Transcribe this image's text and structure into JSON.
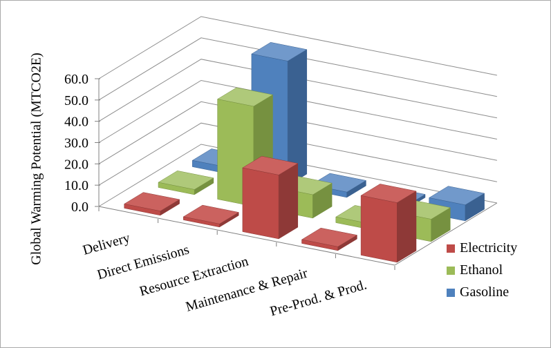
{
  "figure": {
    "background": "#FFFFFF",
    "border_color": "#A9A9A9"
  },
  "chart_data": {
    "type": "bar",
    "subtype": "3d-column",
    "title": "",
    "xlabel": "",
    "ylabel": "Global Warming Potential (MTCO2E)",
    "categories": [
      "Delivery",
      "Direct Emissions",
      "Resource Extraction",
      "Maintenance & Repair",
      "Pre-Prod. & Prod."
    ],
    "series": [
      {
        "name": "Electricity",
        "color": "#BE4B48",
        "color_top": "#CB625F",
        "color_side": "#8E3937",
        "values": [
          2.0,
          1.5,
          30.0,
          1.8,
          28.0
        ]
      },
      {
        "name": "Ethanol",
        "color": "#9CBB58",
        "color_top": "#AFC97A",
        "color_side": "#769140",
        "values": [
          2.4,
          47.0,
          11.0,
          2.7,
          10.5
        ]
      },
      {
        "name": "Gasoline",
        "color": "#4F81BD",
        "color_top": "#7199CB",
        "color_side": "#3A6191",
        "values": [
          3.0,
          58.5,
          2.5,
          1.5,
          7.5
        ]
      }
    ],
    "ylim": [
      0,
      60
    ],
    "ytick_step": 10,
    "ytick_labels": [
      "0.0",
      "10.0",
      "20.0",
      "30.0",
      "40.0",
      "50.0",
      "60.0"
    ],
    "grid": true,
    "gridline_color": "#8C8C8C",
    "axis_color": "#7F7F7F",
    "legend_position": "right",
    "category_label_rotation_deg": -16
  }
}
